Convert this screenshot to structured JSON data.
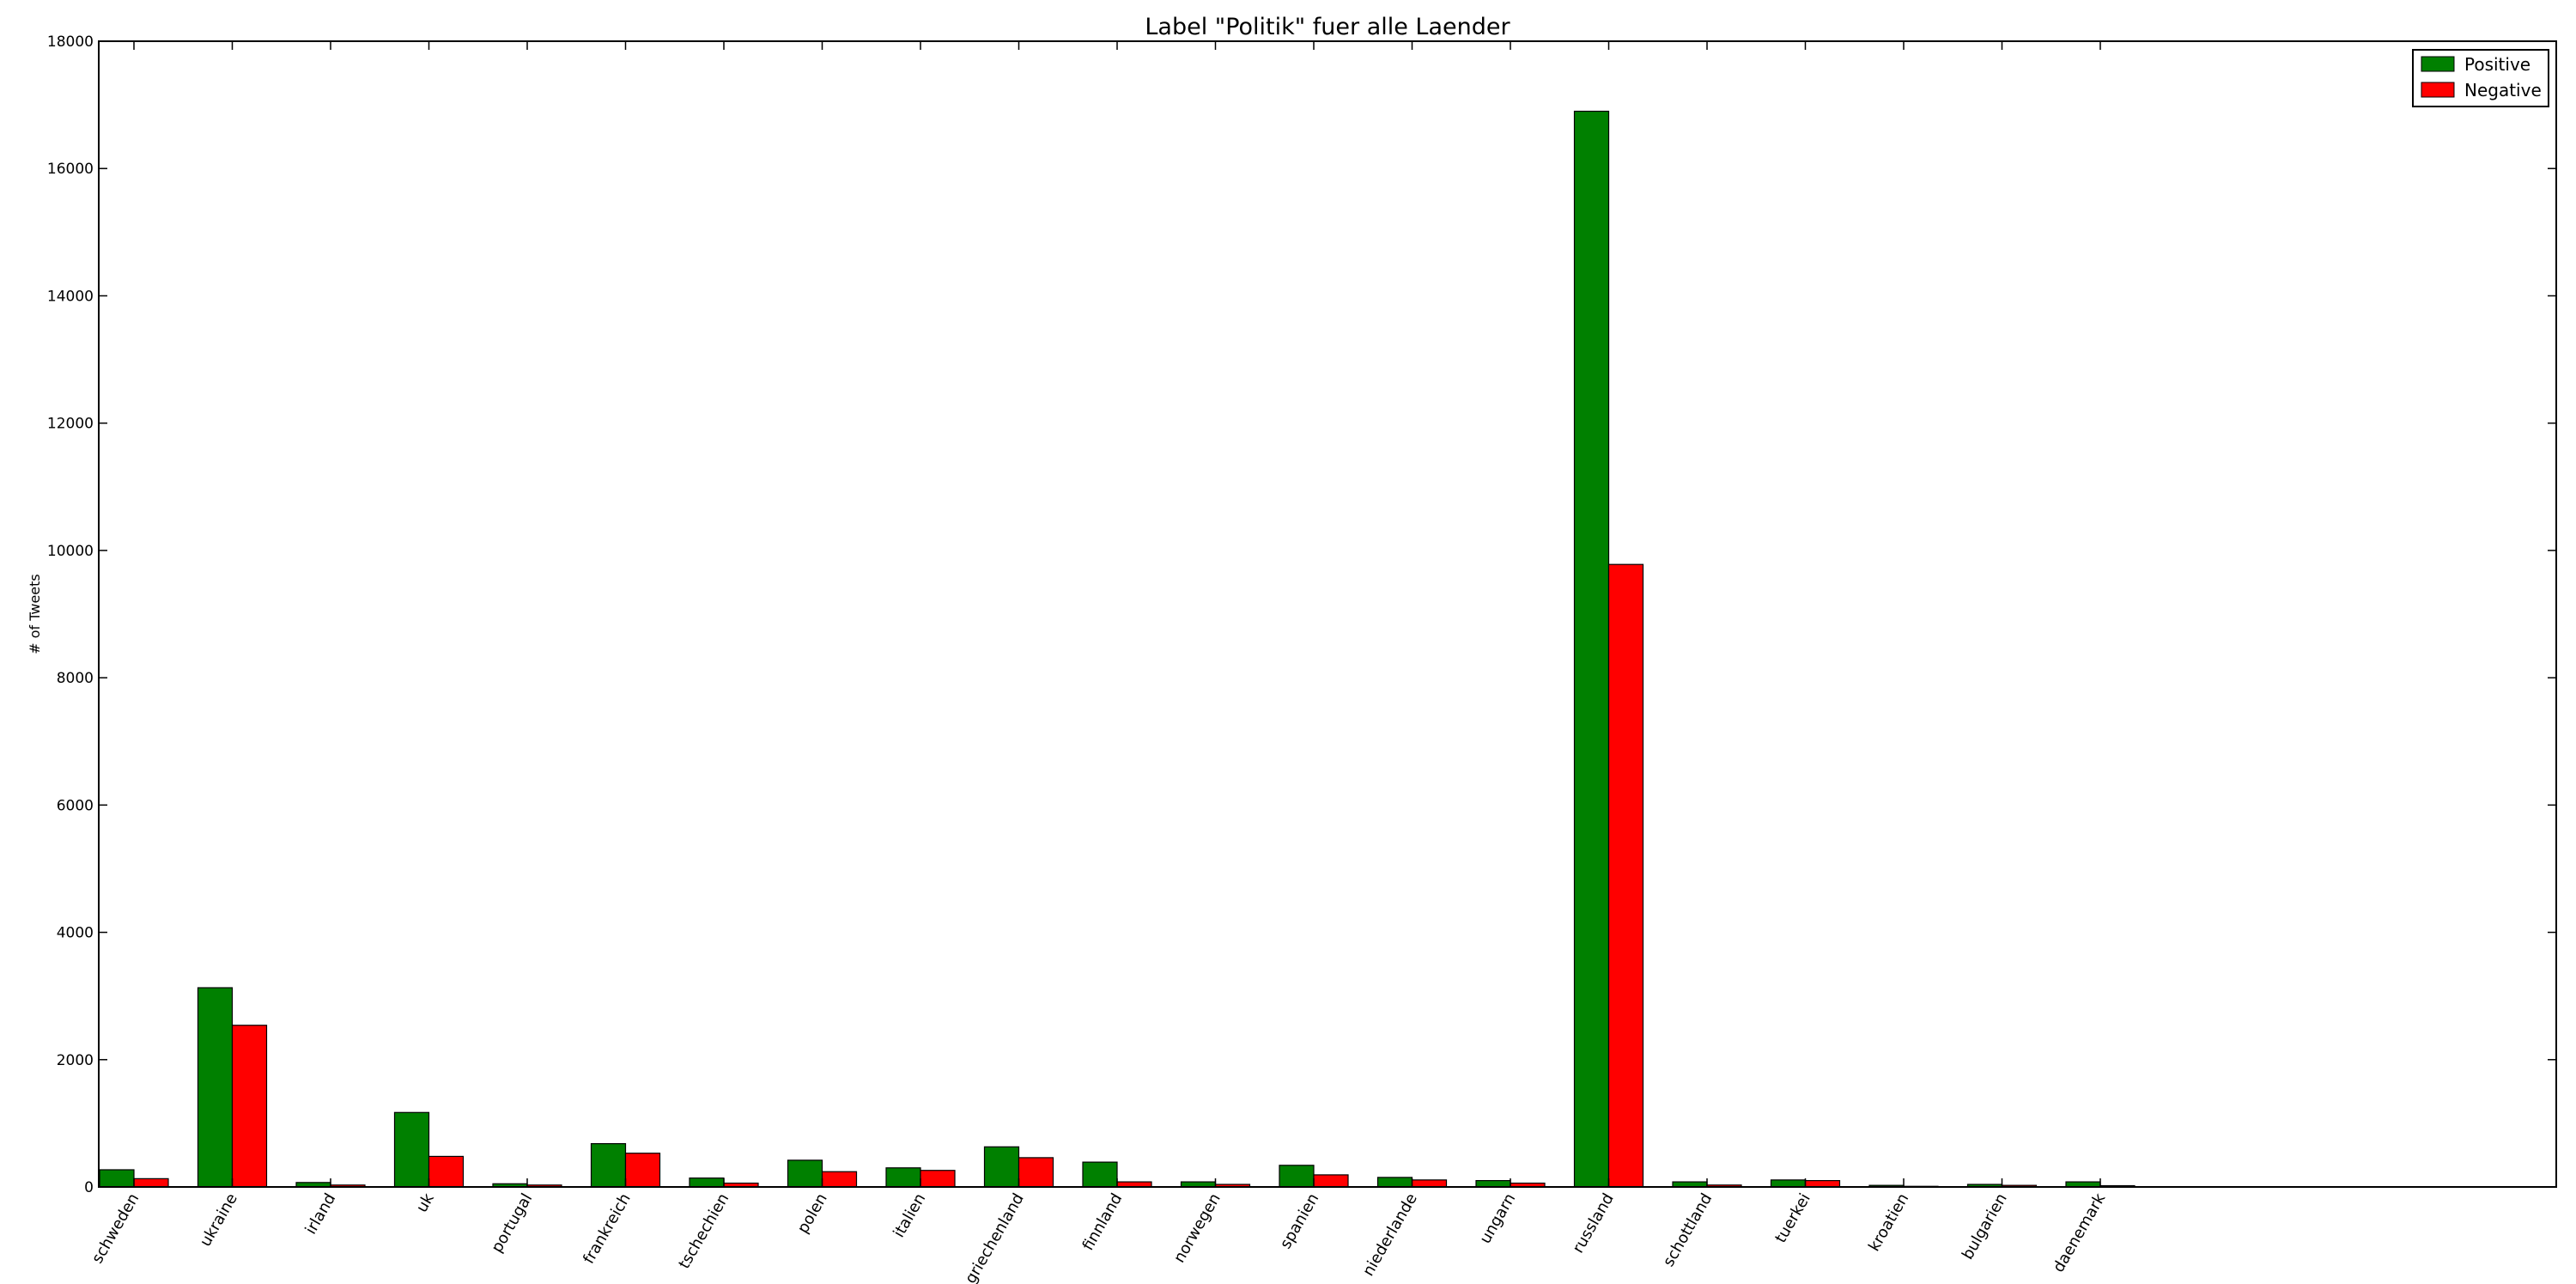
{
  "chart_data": {
    "type": "bar",
    "title": "Label \"Politik\" fuer alle Laender",
    "xlabel": "",
    "ylabel": "# of Tweets",
    "ylim": [
      0,
      18000
    ],
    "yticks": [
      0,
      2000,
      4000,
      6000,
      8000,
      10000,
      12000,
      14000,
      16000,
      18000
    ],
    "grid": false,
    "legend_position": "top-right",
    "categories": [
      "schweden",
      "ukraine",
      "irland",
      "uk",
      "portugal",
      "frankreich",
      "tschechien",
      "polen",
      "italien",
      "griechenland",
      "finnland",
      "norwegen",
      "spanien",
      "niederlande",
      "ungarn",
      "russland",
      "schottland",
      "tuerkei",
      "kroatien",
      "bulgarien",
      "daenemark"
    ],
    "series": [
      {
        "name": "Positive",
        "color": "#008000",
        "values": [
          270,
          3130,
          70,
          1170,
          50,
          680,
          140,
          420,
          300,
          630,
          390,
          80,
          340,
          150,
          100,
          16900,
          80,
          110,
          25,
          40,
          80
        ]
      },
      {
        "name": "Negative",
        "color": "#ff0000",
        "values": [
          130,
          2540,
          30,
          480,
          30,
          530,
          60,
          240,
          260,
          460,
          80,
          40,
          190,
          110,
          60,
          9780,
          30,
          100,
          10,
          25,
          20
        ]
      }
    ]
  }
}
